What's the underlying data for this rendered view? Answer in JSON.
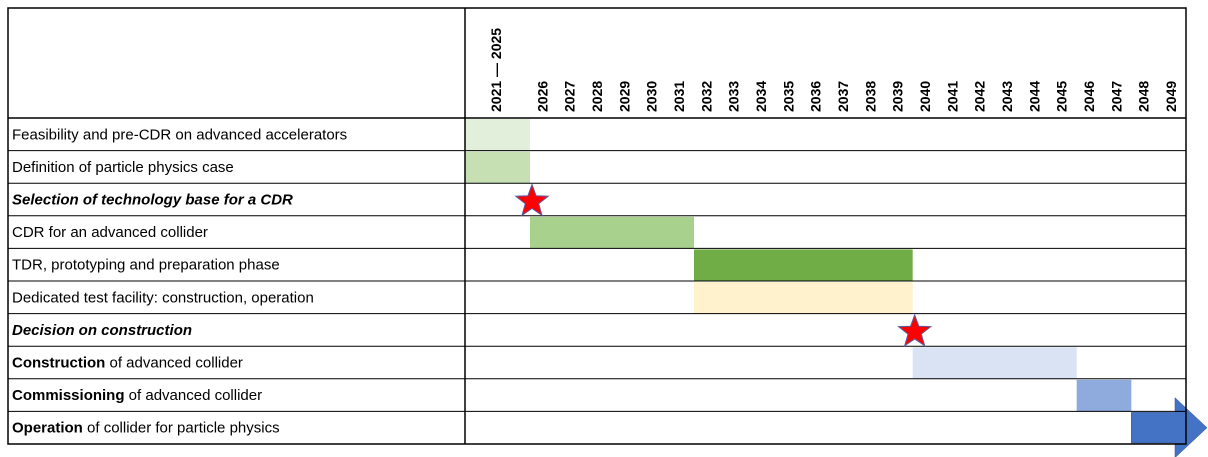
{
  "chart_data": {
    "type": "gantt",
    "categories": [
      "2021 — 2025",
      "2026",
      "2027",
      "2028",
      "2029",
      "2030",
      "2031",
      "2032",
      "2033",
      "2034",
      "2035",
      "2036",
      "2037",
      "2038",
      "2039",
      "2040",
      "2041",
      "2042",
      "2043",
      "2044",
      "2045",
      "2046",
      "2047",
      "2048",
      "2049"
    ],
    "tasks": [
      {
        "label": [
          {
            "text": "Feasibility and pre-CDR on advanced accelerators"
          }
        ],
        "start": 2021,
        "end": 2026,
        "color": "#e2efda"
      },
      {
        "label": [
          {
            "text": "Definition of particle physics case"
          }
        ],
        "start": 2021,
        "end": 2026,
        "color": "#c6e0b4"
      },
      {
        "label": [
          {
            "text": "Selection of technology base for a CDR",
            "bold": true,
            "italic": true
          }
        ],
        "milestone": 2026,
        "color": "#ff0000"
      },
      {
        "label": [
          {
            "text": "CDR for an advanced collider"
          }
        ],
        "start": 2026,
        "end": 2032,
        "color": "#a9d18e"
      },
      {
        "label": [
          {
            "text": "TDR, prototyping and preparation phase"
          }
        ],
        "start": 2032,
        "end": 2040,
        "color": "#70ad47"
      },
      {
        "label": [
          {
            "text": "Dedicated test facility: construction, operation"
          }
        ],
        "start": 2032,
        "end": 2040,
        "color": "#fff2cc"
      },
      {
        "label": [
          {
            "text": "Decision on construction",
            "bold": true,
            "italic": true
          }
        ],
        "milestone": 2040,
        "color": "#ff0000"
      },
      {
        "label": [
          {
            "text": "Construction",
            "bold": true
          },
          {
            "text": " of advanced collider"
          }
        ],
        "start": 2040,
        "end": 2046,
        "color": "#dae3f3"
      },
      {
        "label": [
          {
            "text": "Commissioning",
            "bold": true
          },
          {
            "text": " of advanced collider"
          }
        ],
        "start": 2046,
        "end": 2048,
        "color": "#8faadc"
      },
      {
        "label": [
          {
            "text": "Operation",
            "bold": true
          },
          {
            "text": " of collider for particle physics"
          }
        ],
        "start": 2048,
        "open_ended": true,
        "color": "#4472c4"
      }
    ]
  }
}
